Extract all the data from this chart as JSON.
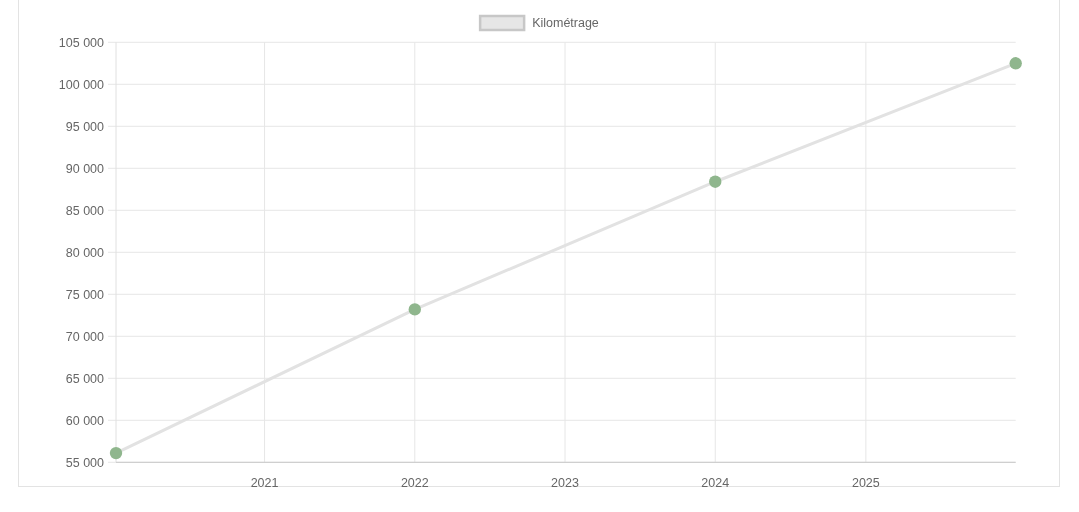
{
  "chart_data": {
    "type": "line",
    "x": [
      "2020-01-06",
      "2022-01-01",
      "2024-01-01",
      "2025-12-31"
    ],
    "series": [
      {
        "name": "Kilométrage",
        "color": "#e2e2e2",
        "colors": [
          "#8fb68d",
          "#8fb68d",
          "#8fb68d",
          "#8fb68d"
        ],
        "values": [
          56100,
          73200,
          88400,
          102500
        ]
      }
    ],
    "xlim": [
      "2020-01-06",
      "2025-12-31"
    ],
    "xticks": [
      "2021",
      "2022",
      "2023",
      "2024",
      "2025"
    ],
    "ylim": [
      55000,
      105000
    ],
    "yticks": [
      {
        "value": 55000,
        "label": "55 000"
      },
      {
        "value": 60000,
        "label": "60 000"
      },
      {
        "value": 65000,
        "label": "65 000"
      },
      {
        "value": 70000,
        "label": "70 000"
      },
      {
        "value": 75000,
        "label": "75 000"
      },
      {
        "value": 80000,
        "label": "80 000"
      },
      {
        "value": 85000,
        "label": "85 000"
      },
      {
        "value": 90000,
        "label": "90 000"
      },
      {
        "value": 95000,
        "label": "95 000"
      },
      {
        "value": 100000,
        "label": "100 000"
      },
      {
        "value": 105000,
        "label": "105 000"
      }
    ],
    "grid": true,
    "legend": "top",
    "marker": "circle",
    "line_style": "solid"
  }
}
